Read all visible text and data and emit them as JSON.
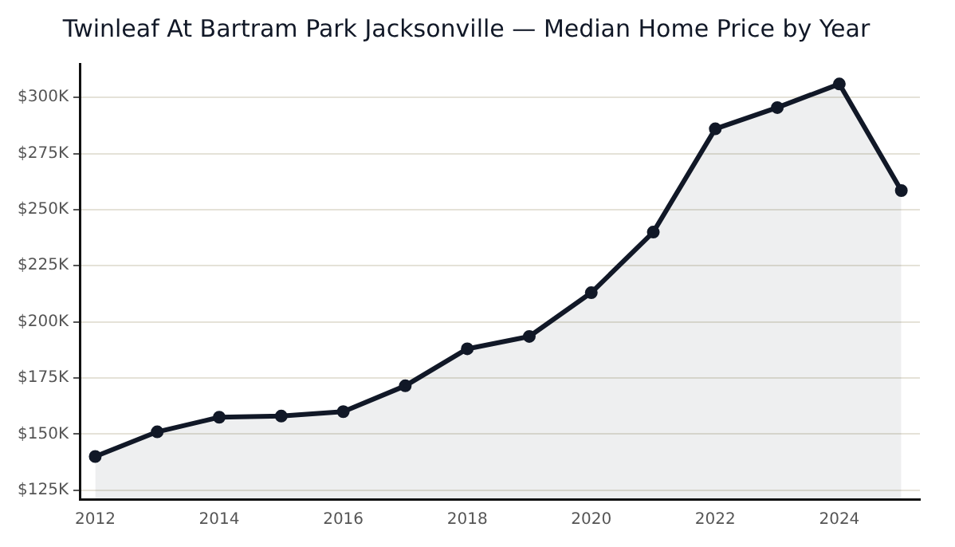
{
  "chart_data": {
    "type": "area",
    "title": "Twinleaf At Bartram Park Jacksonville — Median Home Price by Year",
    "x": [
      2012,
      2013,
      2014,
      2015,
      2016,
      2017,
      2018,
      2019,
      2020,
      2021,
      2022,
      2023,
      2024,
      2025
    ],
    "series": [
      {
        "color": "#111827",
        "values": [
          140,
          151,
          157.5,
          158,
          160,
          171.5,
          188,
          193.5,
          213,
          240,
          286,
          295.5,
          306,
          258.5
        ]
      }
    ],
    "xlim": [
      2011.75,
      2025.3
    ],
    "xticks": [
      2012,
      2014,
      2016,
      2018,
      2020,
      2022,
      2024
    ],
    "ylim": [
      121,
      315
    ],
    "yticks": [
      {
        "value": 125,
        "label": "$125K"
      },
      {
        "value": 150,
        "label": "$150K"
      },
      {
        "value": 175,
        "label": "$175K"
      },
      {
        "value": 200,
        "label": "$200K"
      },
      {
        "value": 225,
        "label": "$225K"
      },
      {
        "value": 250,
        "label": "$250K"
      },
      {
        "value": 275,
        "label": "$275K"
      },
      {
        "value": 300,
        "label": "$300K"
      }
    ],
    "grid": "y",
    "marker": "circle",
    "line_style": "solid",
    "legend": false
  }
}
